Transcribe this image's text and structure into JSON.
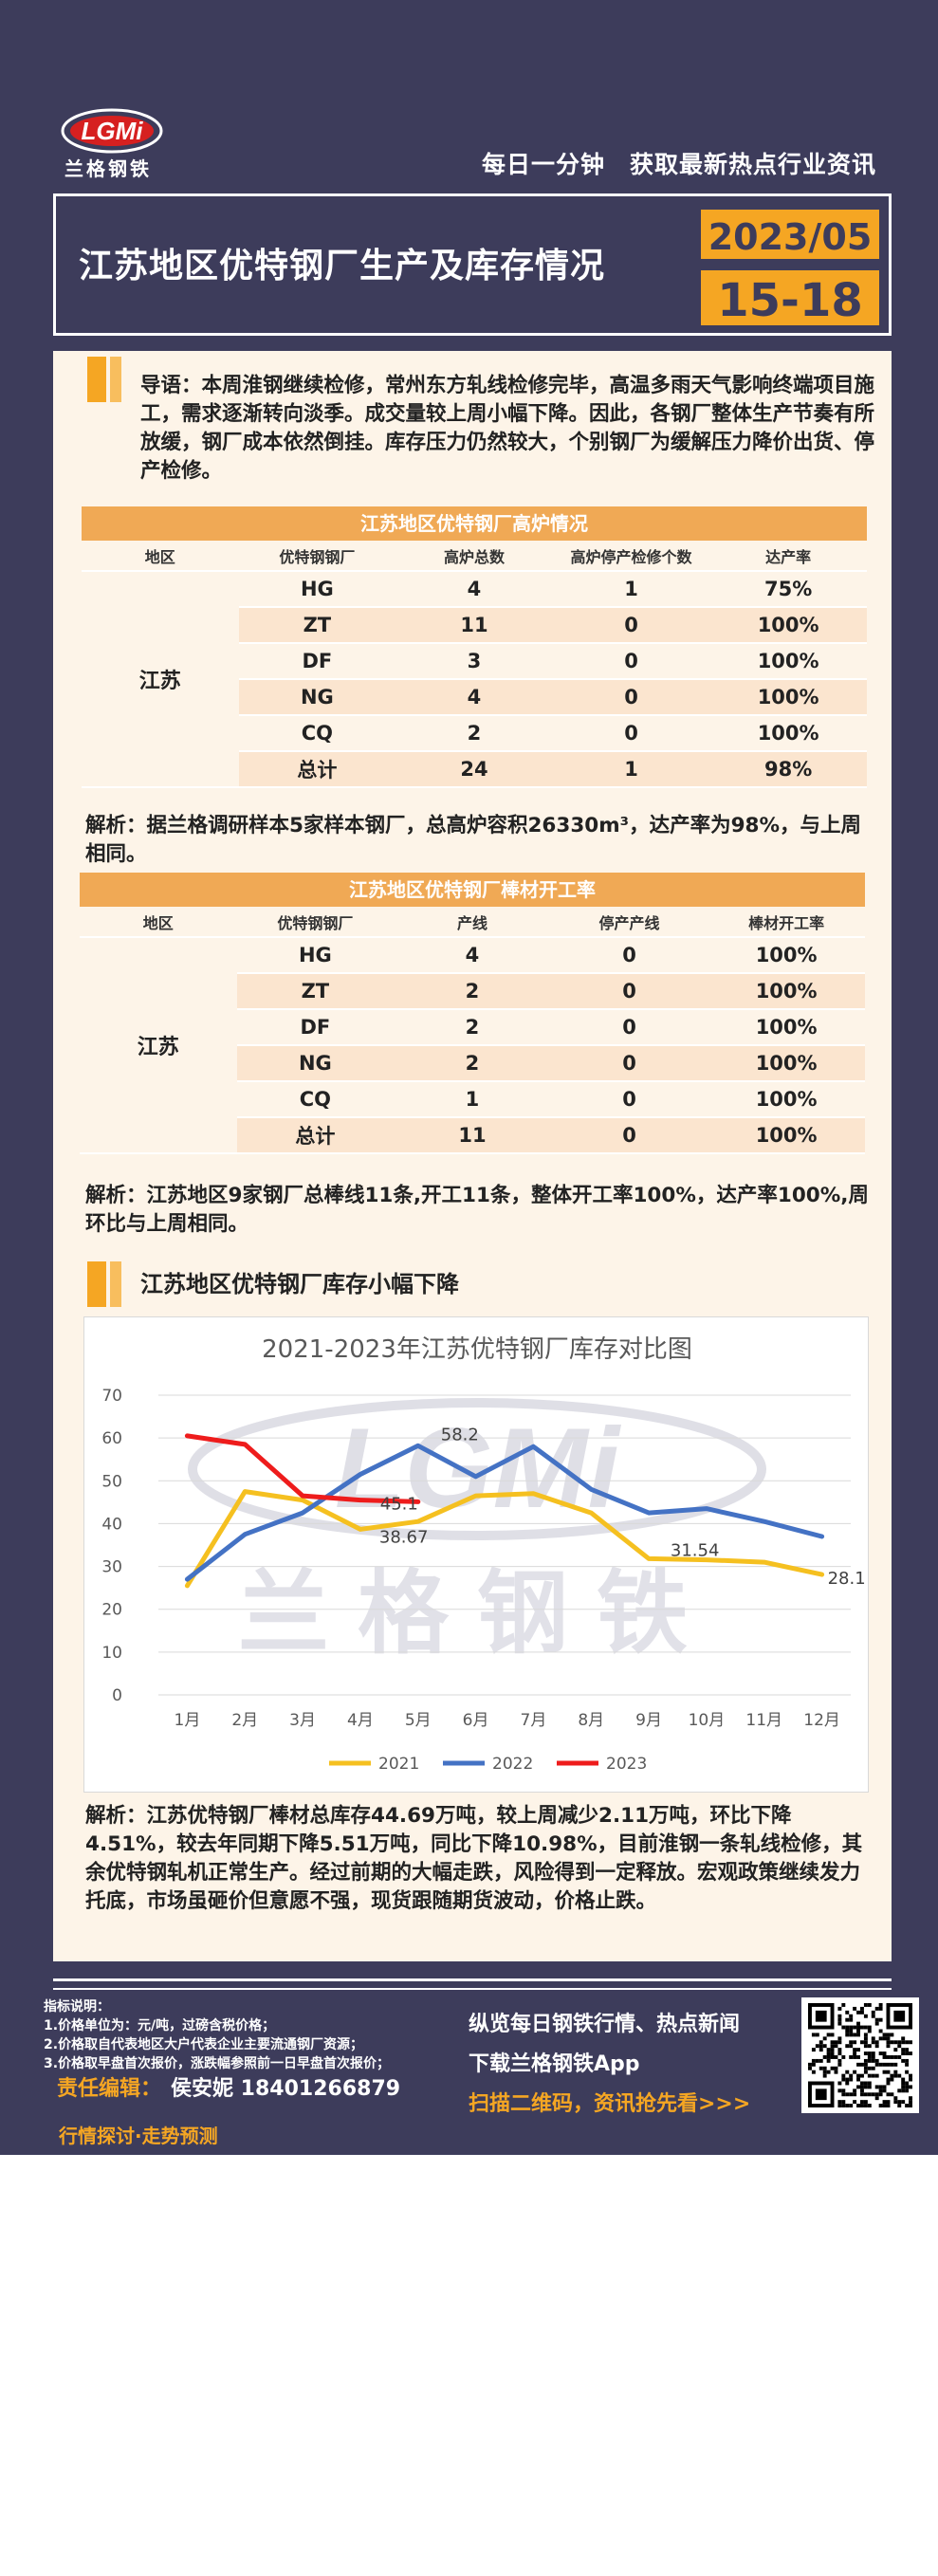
{
  "brand": {
    "logo_letters": "LGMi",
    "name": "兰格钢铁",
    "slogan_left": "每日一分钟",
    "slogan_right": "获取最新热点行业资讯",
    "colors": {
      "navy": "#3d3c5b",
      "orange": "#f5a623",
      "panel": "#fdf4e8"
    }
  },
  "header": {
    "title": "江苏地区优特钢厂生产及库存情况",
    "year_month": "2023/05",
    "day_range": "15-18"
  },
  "intro": "导语：本周淮钢继续检修，常州东方轧线检修完毕，高温多雨天气影响终端项目施工，需求逐渐转向淡季。成交量较上周小幅下降。因此，各钢厂整体生产节奏有所放缓，钢厂成本依然倒挂。库存压力仍然较大，个别钢厂为缓解压力降价出货、停产检修。",
  "furnace_table": {
    "title": "江苏地区优特钢厂高炉情况",
    "headers": [
      "地区",
      "优特钢钢厂",
      "高炉总数",
      "高炉停产检修个数",
      "达产率"
    ],
    "region": "江苏",
    "rows": [
      {
        "mill": "HG",
        "c1": "4",
        "c2": "1",
        "c3": "75%"
      },
      {
        "mill": "ZT",
        "c1": "11",
        "c2": "0",
        "c3": "100%"
      },
      {
        "mill": "DF",
        "c1": "3",
        "c2": "0",
        "c3": "100%"
      },
      {
        "mill": "NG",
        "c1": "4",
        "c2": "0",
        "c3": "100%"
      },
      {
        "mill": "CQ",
        "c1": "2",
        "c2": "0",
        "c3": "100%"
      },
      {
        "mill": "总计",
        "c1": "24",
        "c2": "1",
        "c3": "98%"
      }
    ]
  },
  "analysis1": "解析：据兰格调研样本5家样本钢厂，总高炉容积26330m³，达产率为98%，与上周相同。",
  "rolling_table": {
    "title": "江苏地区优特钢厂棒材开工率",
    "headers": [
      "地区",
      "优特钢钢厂",
      "产线",
      "停产产线",
      "棒材开工率"
    ],
    "region": "江苏",
    "rows": [
      {
        "mill": "HG",
        "c1": "4",
        "c2": "0",
        "c3": "100%"
      },
      {
        "mill": "ZT",
        "c1": "2",
        "c2": "0",
        "c3": "100%"
      },
      {
        "mill": "DF",
        "c1": "2",
        "c2": "0",
        "c3": "100%"
      },
      {
        "mill": "NG",
        "c1": "2",
        "c2": "0",
        "c3": "100%"
      },
      {
        "mill": "CQ",
        "c1": "1",
        "c2": "0",
        "c3": "100%"
      },
      {
        "mill": "总计",
        "c1": "11",
        "c2": "0",
        "c3": "100%"
      }
    ]
  },
  "analysis2": "解析：江苏地区9家钢厂总棒线11条,开工11条，整体开工率100%，达产率100%,周环比与上周相同。",
  "inventory_heading": "江苏地区优特钢厂库存小幅下降",
  "chart_data": {
    "type": "line",
    "title": "2021-2023年江苏优特钢厂库存对比图",
    "categories": [
      "1月",
      "2月",
      "3月",
      "4月",
      "5月",
      "6月",
      "7月",
      "8月",
      "9月",
      "10月",
      "11月",
      "12月"
    ],
    "ylim": [
      0,
      70
    ],
    "yticks": [
      0,
      10,
      20,
      30,
      40,
      50,
      60,
      70
    ],
    "grid": true,
    "legend": "bottom",
    "series": [
      {
        "name": "2021",
        "color": "#f5c020",
        "values": [
          25.5,
          47.5,
          45.5,
          38.67,
          40.5,
          46.5,
          47.0,
          42.5,
          31.8,
          31.54,
          31.0,
          28.1
        ]
      },
      {
        "name": "2022",
        "color": "#4472c4",
        "values": [
          27.0,
          37.5,
          42.5,
          51.5,
          58.2,
          51.0,
          58.0,
          48.0,
          42.5,
          43.5,
          40.5,
          37.0
        ]
      },
      {
        "name": "2023",
        "color": "#ee1c1c",
        "values": [
          60.5,
          58.5,
          46.5,
          45.5,
          45.1,
          null,
          null,
          null,
          null,
          null,
          null,
          null
        ]
      }
    ],
    "data_labels": [
      {
        "series": "2022",
        "index": 4,
        "text": "58.2"
      },
      {
        "series": "2023",
        "index": 4,
        "text": "45.1"
      },
      {
        "series": "2021",
        "index": 3,
        "text": "38.67"
      },
      {
        "series": "2021",
        "index": 9,
        "text": "31.54"
      },
      {
        "series": "2021",
        "index": 11,
        "text": "28.1"
      }
    ],
    "watermark": "兰格钢铁"
  },
  "analysis3": "解析：江苏优特钢厂棒材总库存44.69万吨，较上周减少2.11万吨，环比下降4.51%，较去年同期下降5.51万吨，同比下降10.98%，目前淮钢一条轧线检修，其余优特钢轧机正常生产。经过前期的大幅走跌，风险得到一定释放。宏观政策继续发力托底，市场虽砸价但意愿不强，现货跟随期货波动，价格止跌。",
  "footer": {
    "notes_title": "指标说明：",
    "notes": [
      "1.价格单位为：元/吨，过磅含税价格；",
      "2.价格取自代表地区大户代表企业主要流通钢厂资源；",
      "3.价格取早盘首次报价，涨跌幅参照前一日早盘首次报价；"
    ],
    "editor_label": "责任编辑：",
    "editor_name": "侯安妮 18401266879",
    "tagline": "行情探讨·走势预测",
    "promo1": "纵览每日钢铁行情、热点新闻",
    "promo2": "下载兰格钢铁App",
    "promo3": "扫描二维码，资讯抢先看>>>"
  }
}
